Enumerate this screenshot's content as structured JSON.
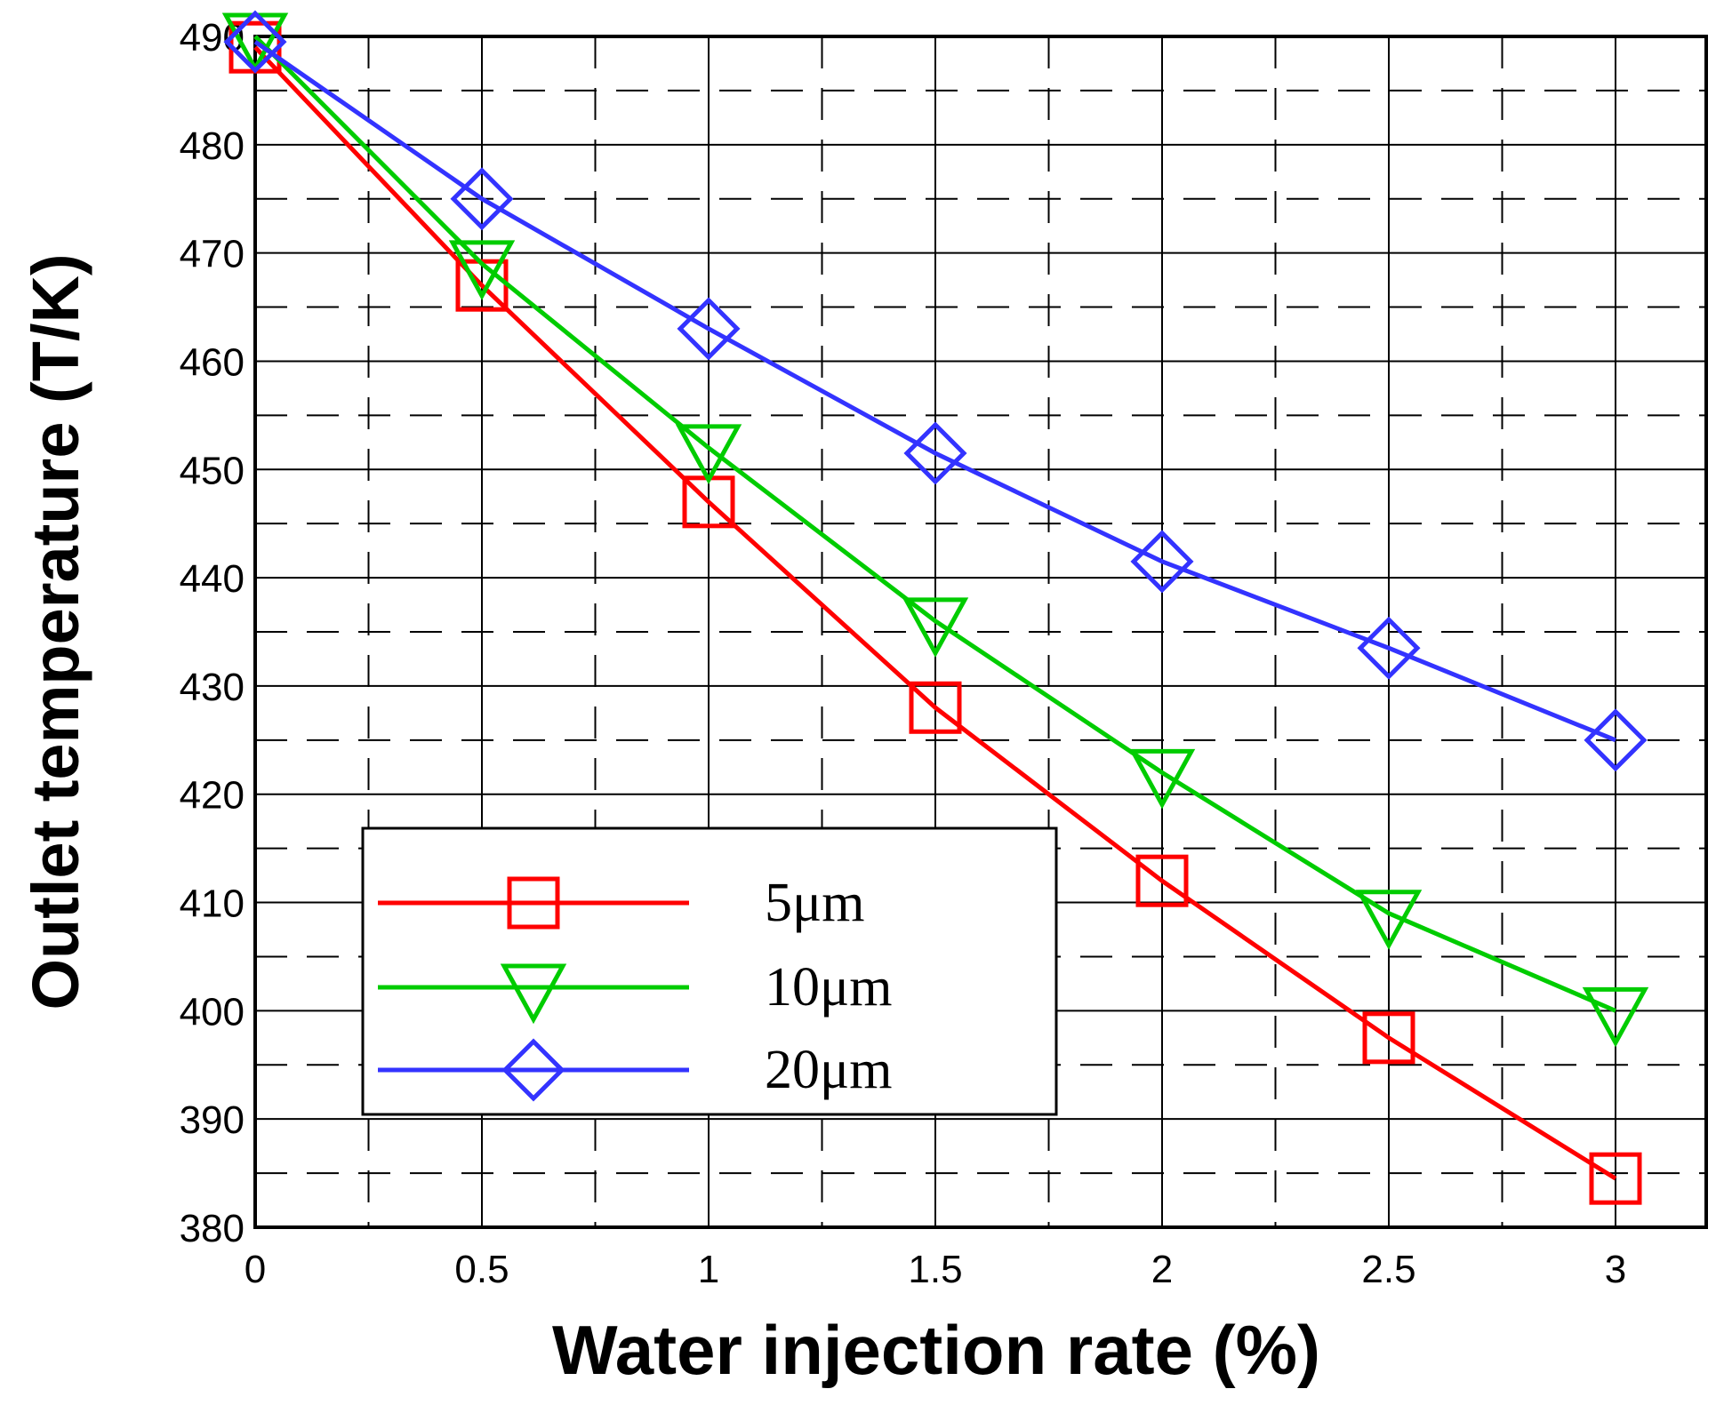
{
  "chart_data": {
    "type": "line",
    "title": "",
    "xlabel": "Water injection rate (%)",
    "ylabel": "Outlet temperature (T/K)",
    "xlim": [
      0,
      3.2
    ],
    "ylim": [
      380,
      490
    ],
    "x_ticks": [
      0,
      0.5,
      1,
      1.5,
      2,
      2.5,
      3
    ],
    "x_tick_labels": [
      "0",
      "0.5",
      "1",
      "1.5",
      "2",
      "2.5",
      "3"
    ],
    "y_ticks": [
      380,
      390,
      400,
      410,
      420,
      430,
      440,
      450,
      460,
      470,
      480,
      490
    ],
    "y_tick_labels": [
      "380",
      "390",
      "400",
      "410",
      "420",
      "430",
      "440",
      "450",
      "460",
      "470",
      "480",
      "490"
    ],
    "grid": true,
    "legend_position": "bottom-left",
    "x": [
      0,
      0.5,
      1,
      1.5,
      2,
      2.5,
      3
    ],
    "series": [
      {
        "name": "5μm",
        "marker": "square",
        "color": "#ff0000",
        "values": [
          489,
          467,
          447,
          428,
          412,
          397.5,
          384.5
        ]
      },
      {
        "name": "10μm",
        "marker": "triangle-down",
        "color": "#00cc00",
        "values": [
          490,
          469,
          452,
          436,
          422,
          409,
          400
        ]
      },
      {
        "name": "20μm",
        "marker": "diamond",
        "color": "#3333ff",
        "values": [
          489.5,
          475,
          463,
          451.5,
          441.5,
          433.5,
          425
        ]
      }
    ]
  }
}
